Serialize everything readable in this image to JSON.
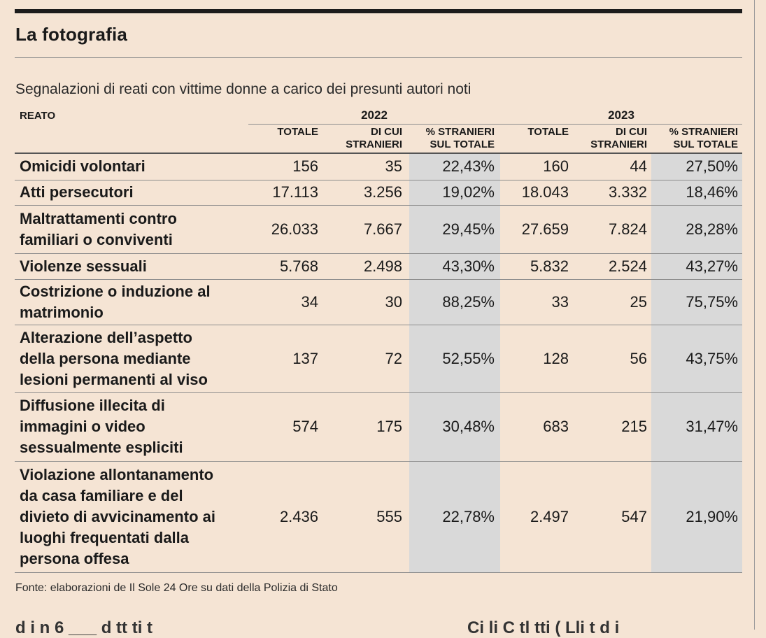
{
  "title": "La fotografia",
  "subtitle": "Segnalazioni di reati con vittime donne a carico dei presunti autori noti",
  "header": {
    "reato": "REATO",
    "years": [
      "2022",
      "2023"
    ],
    "columns": [
      "TOTALE",
      "DI CUI\nSTRANIERI",
      "% STRANIERI\nSUL TOTALE"
    ]
  },
  "rows": [
    {
      "label": "Omicidi volontari",
      "values": [
        "156",
        "35",
        "22,43%",
        "160",
        "44",
        "27,50%"
      ]
    },
    {
      "label": "Atti persecutori",
      "values": [
        "17.113",
        "3.256",
        "19,02%",
        "18.043",
        "3.332",
        "18,46%"
      ]
    },
    {
      "label": "Maltrattamenti contro\nfamiliari o conviventi",
      "values": [
        "26.033",
        "7.667",
        "29,45%",
        "27.659",
        "7.824",
        "28,28%"
      ]
    },
    {
      "label": "Violenze sessuali",
      "values": [
        "5.768",
        "2.498",
        "43,30%",
        "5.832",
        "2.524",
        "43,27%"
      ]
    },
    {
      "label": "Costrizione o induzione al\nmatrimonio",
      "values": [
        "34",
        "30",
        "88,25%",
        "33",
        "25",
        "75,75%"
      ]
    },
    {
      "label": "Alterazione dell’aspetto\ndella persona mediante\nlesioni permanenti al viso",
      "values": [
        "137",
        "72",
        "52,55%",
        "128",
        "56",
        "43,75%"
      ]
    },
    {
      "label": "Diffusione illecita di\nimmagini o video\nsessualmente espliciti",
      "values": [
        "574",
        "175",
        "30,48%",
        "683",
        "215",
        "31,47%"
      ]
    },
    {
      "label": "Violazione allontanamento\nda casa familiare e del\ndivieto di avvicinamento ai\nluoghi frequentati dalla\npersona offesa",
      "values": [
        "2.436",
        "555",
        "22,78%",
        "2.497",
        "547",
        "21,90%"
      ]
    }
  ],
  "source": "Fonte: elaborazioni de Il Sole 24 Ore su dati della Polizia di Stato",
  "colors": {
    "background": "#f5e4d4",
    "shade": "#d9d9d9",
    "rule": "#1c1c1c"
  }
}
